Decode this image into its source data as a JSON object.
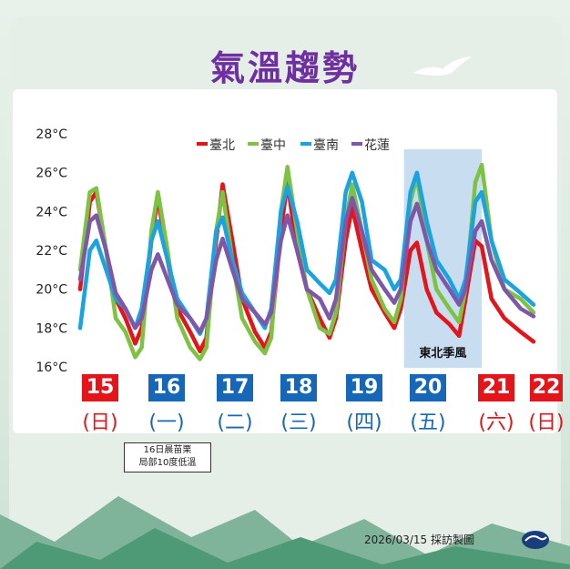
{
  "title": "氣溫趨勢",
  "footer": "2026/03/15 採訪製圖",
  "note": [
    "16日晨苗栗",
    "局部10度低溫"
  ],
  "season_label": "東北季風",
  "days": [
    {
      "num": "15",
      "weekday": "(日)",
      "color": "#e3151b"
    },
    {
      "num": "16",
      "weekday": "(一)",
      "color": "#1667b7"
    },
    {
      "num": "17",
      "weekday": "(二)",
      "color": "#1667b7"
    },
    {
      "num": "18",
      "weekday": "(三)",
      "color": "#1667b7"
    },
    {
      "num": "19",
      "weekday": "(四)",
      "color": "#1667b7"
    },
    {
      "num": "20",
      "weekday": "(五)",
      "color": "#1667b7"
    },
    {
      "num": "21",
      "weekday": "(六)",
      "color": "#e3151b"
    },
    {
      "num": "22",
      "weekday": "(日)",
      "color": "#e3151b"
    }
  ],
  "chart_data": {
    "type": "line",
    "ylim": [
      16,
      28
    ],
    "yticks": [
      "16°C",
      "18°C",
      "20°C",
      "22°C",
      "24°C",
      "26°C",
      "28°C"
    ],
    "ytick_values": [
      16,
      18,
      20,
      22,
      24,
      26,
      28
    ],
    "xlim": [
      15.0,
      22.0
    ],
    "shaded_region": {
      "x_start": 20.0,
      "x_end": 21.2,
      "label": "東北季風"
    },
    "legend_placement": "top",
    "series": [
      {
        "name": "臺北",
        "color": "#e3151b",
        "points": [
          [
            15.0,
            20.0
          ],
          [
            15.15,
            24.5
          ],
          [
            15.25,
            25.0
          ],
          [
            15.4,
            22.0
          ],
          [
            15.55,
            19.5
          ],
          [
            15.7,
            18.5
          ],
          [
            15.85,
            17.2
          ],
          [
            15.95,
            18.0
          ],
          [
            16.1,
            22.5
          ],
          [
            16.2,
            24.8
          ],
          [
            16.35,
            21.5
          ],
          [
            16.5,
            19.0
          ],
          [
            16.7,
            17.8
          ],
          [
            16.85,
            16.8
          ],
          [
            16.95,
            17.5
          ],
          [
            17.1,
            22.5
          ],
          [
            17.2,
            25.4
          ],
          [
            17.35,
            22.5
          ],
          [
            17.5,
            19.5
          ],
          [
            17.7,
            17.8
          ],
          [
            17.85,
            17.0
          ],
          [
            17.95,
            17.8
          ],
          [
            18.1,
            23.0
          ],
          [
            18.2,
            25.5
          ],
          [
            18.35,
            22.0
          ],
          [
            18.5,
            20.0
          ],
          [
            18.7,
            18.5
          ],
          [
            18.85,
            17.5
          ],
          [
            18.95,
            18.5
          ],
          [
            19.1,
            22.5
          ],
          [
            19.2,
            24.2
          ],
          [
            19.35,
            22.0
          ],
          [
            19.5,
            20.0
          ],
          [
            19.7,
            18.8
          ],
          [
            19.85,
            18.0
          ],
          [
            19.95,
            19.0
          ],
          [
            20.1,
            22.0
          ],
          [
            20.2,
            22.4
          ],
          [
            20.35,
            20.0
          ],
          [
            20.5,
            18.8
          ],
          [
            20.7,
            18.2
          ],
          [
            20.85,
            17.6
          ],
          [
            20.95,
            19.5
          ],
          [
            21.1,
            22.5
          ],
          [
            21.2,
            22.2
          ],
          [
            21.35,
            19.5
          ],
          [
            21.55,
            18.5
          ],
          [
            21.8,
            17.8
          ],
          [
            22.0,
            17.3
          ]
        ]
      },
      {
        "name": "臺中",
        "color": "#7dc243",
        "points": [
          [
            15.0,
            21.0
          ],
          [
            15.15,
            25.0
          ],
          [
            15.25,
            25.2
          ],
          [
            15.4,
            22.0
          ],
          [
            15.55,
            18.5
          ],
          [
            15.7,
            17.8
          ],
          [
            15.85,
            16.5
          ],
          [
            15.95,
            17.0
          ],
          [
            16.1,
            23.0
          ],
          [
            16.2,
            25.0
          ],
          [
            16.35,
            22.0
          ],
          [
            16.5,
            18.5
          ],
          [
            16.7,
            17.0
          ],
          [
            16.85,
            16.4
          ],
          [
            16.95,
            17.0
          ],
          [
            17.1,
            23.0
          ],
          [
            17.2,
            25.0
          ],
          [
            17.35,
            21.5
          ],
          [
            17.5,
            18.5
          ],
          [
            17.7,
            17.3
          ],
          [
            17.85,
            16.7
          ],
          [
            17.95,
            17.5
          ],
          [
            18.1,
            24.0
          ],
          [
            18.2,
            26.3
          ],
          [
            18.35,
            23.0
          ],
          [
            18.5,
            20.0
          ],
          [
            18.7,
            18.0
          ],
          [
            18.85,
            17.7
          ],
          [
            18.95,
            18.8
          ],
          [
            19.1,
            23.5
          ],
          [
            19.2,
            25.4
          ],
          [
            19.35,
            23.0
          ],
          [
            19.5,
            20.5
          ],
          [
            19.7,
            19.0
          ],
          [
            19.85,
            18.3
          ],
          [
            19.95,
            19.5
          ],
          [
            20.1,
            24.5
          ],
          [
            20.2,
            25.8
          ],
          [
            20.35,
            22.5
          ],
          [
            20.5,
            20.0
          ],
          [
            20.7,
            19.0
          ],
          [
            20.85,
            18.3
          ],
          [
            20.95,
            20.0
          ],
          [
            21.1,
            25.5
          ],
          [
            21.2,
            26.4
          ],
          [
            21.35,
            22.5
          ],
          [
            21.55,
            20.0
          ],
          [
            21.8,
            19.5
          ],
          [
            22.0,
            18.8
          ]
        ]
      },
      {
        "name": "臺南",
        "color": "#1aa3e0",
        "points": [
          [
            15.0,
            18.0
          ],
          [
            15.15,
            22.0
          ],
          [
            15.25,
            22.5
          ],
          [
            15.4,
            21.0
          ],
          [
            15.55,
            19.5
          ],
          [
            15.7,
            19.0
          ],
          [
            15.85,
            18.0
          ],
          [
            15.95,
            19.0
          ],
          [
            16.1,
            22.5
          ],
          [
            16.2,
            23.5
          ],
          [
            16.35,
            21.5
          ],
          [
            16.5,
            19.5
          ],
          [
            16.7,
            18.5
          ],
          [
            16.85,
            17.7
          ],
          [
            16.95,
            18.5
          ],
          [
            17.1,
            23.0
          ],
          [
            17.2,
            23.7
          ],
          [
            17.35,
            21.5
          ],
          [
            17.5,
            19.8
          ],
          [
            17.7,
            18.8
          ],
          [
            17.85,
            18.0
          ],
          [
            17.95,
            19.0
          ],
          [
            18.1,
            24.0
          ],
          [
            18.2,
            25.3
          ],
          [
            18.35,
            23.5
          ],
          [
            18.5,
            21.0
          ],
          [
            18.7,
            20.3
          ],
          [
            18.85,
            19.8
          ],
          [
            18.95,
            20.5
          ],
          [
            19.1,
            25.0
          ],
          [
            19.2,
            26.0
          ],
          [
            19.35,
            24.5
          ],
          [
            19.5,
            21.5
          ],
          [
            19.7,
            21.0
          ],
          [
            19.85,
            20.0
          ],
          [
            19.95,
            20.5
          ],
          [
            20.1,
            25.0
          ],
          [
            20.2,
            26.0
          ],
          [
            20.35,
            23.5
          ],
          [
            20.5,
            21.5
          ],
          [
            20.7,
            20.5
          ],
          [
            20.85,
            19.5
          ],
          [
            20.95,
            20.5
          ],
          [
            21.1,
            24.5
          ],
          [
            21.2,
            25.0
          ],
          [
            21.35,
            22.5
          ],
          [
            21.55,
            20.5
          ],
          [
            21.8,
            19.8
          ],
          [
            22.0,
            19.2
          ]
        ]
      },
      {
        "name": "花蓮",
        "color": "#7e57a8",
        "points": [
          [
            15.0,
            20.5
          ],
          [
            15.15,
            23.5
          ],
          [
            15.25,
            23.8
          ],
          [
            15.4,
            22.0
          ],
          [
            15.55,
            19.8
          ],
          [
            15.7,
            19.0
          ],
          [
            15.85,
            18.0
          ],
          [
            15.95,
            18.5
          ],
          [
            16.1,
            21.0
          ],
          [
            16.2,
            21.8
          ],
          [
            16.35,
            20.5
          ],
          [
            16.5,
            19.2
          ],
          [
            16.7,
            18.5
          ],
          [
            16.85,
            17.8
          ],
          [
            16.95,
            18.5
          ],
          [
            17.1,
            21.5
          ],
          [
            17.2,
            22.6
          ],
          [
            17.35,
            21.0
          ],
          [
            17.5,
            19.5
          ],
          [
            17.7,
            18.8
          ],
          [
            17.85,
            18.2
          ],
          [
            17.95,
            18.8
          ],
          [
            18.1,
            22.5
          ],
          [
            18.2,
            23.8
          ],
          [
            18.35,
            22.0
          ],
          [
            18.5,
            20.0
          ],
          [
            18.7,
            19.5
          ],
          [
            18.85,
            18.5
          ],
          [
            18.95,
            19.5
          ],
          [
            19.1,
            23.5
          ],
          [
            19.2,
            24.7
          ],
          [
            19.35,
            23.0
          ],
          [
            19.5,
            21.0
          ],
          [
            19.7,
            20.0
          ],
          [
            19.85,
            19.3
          ],
          [
            19.95,
            20.0
          ],
          [
            20.1,
            23.5
          ],
          [
            20.2,
            24.4
          ],
          [
            20.35,
            22.5
          ],
          [
            20.5,
            21.0
          ],
          [
            20.7,
            20.0
          ],
          [
            20.85,
            19.2
          ],
          [
            20.95,
            20.0
          ],
          [
            21.1,
            23.0
          ],
          [
            21.2,
            23.5
          ],
          [
            21.35,
            21.5
          ],
          [
            21.55,
            20.0
          ],
          [
            21.8,
            19.0
          ],
          [
            22.0,
            18.6
          ]
        ]
      }
    ]
  }
}
